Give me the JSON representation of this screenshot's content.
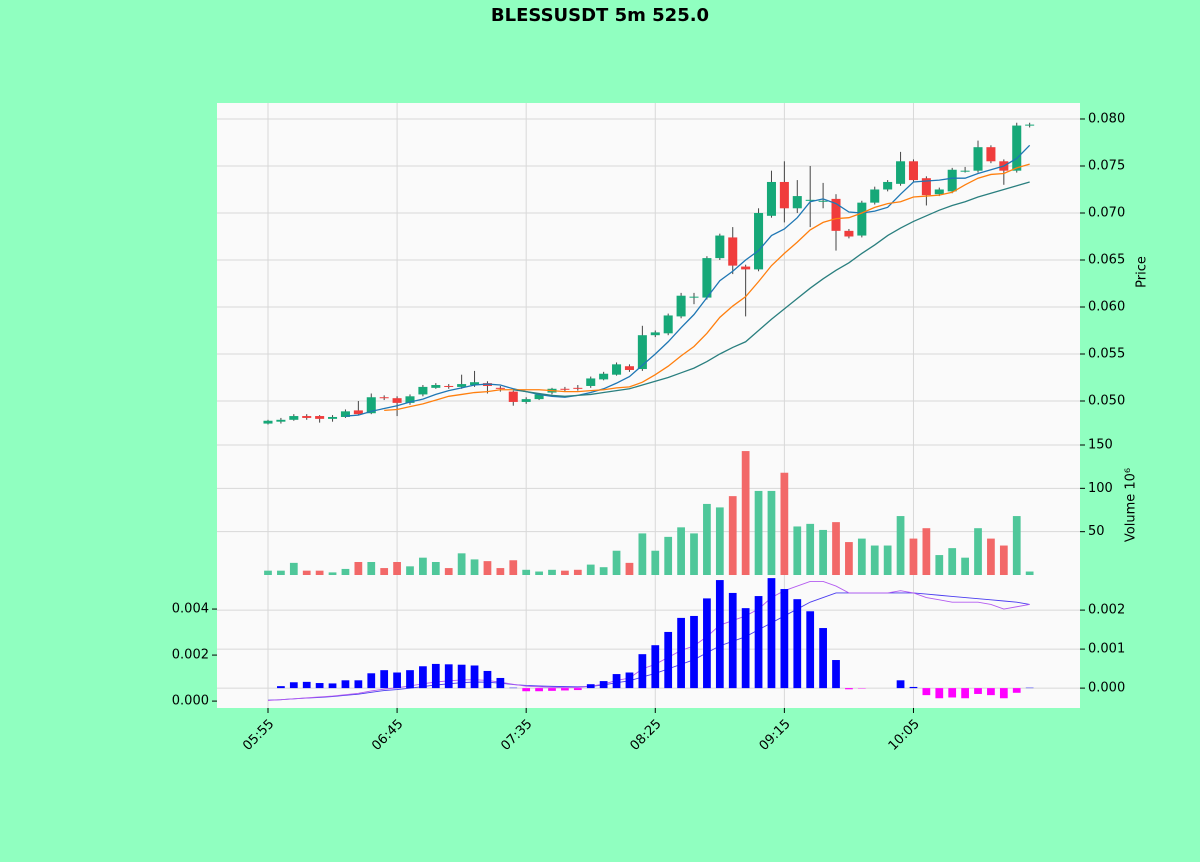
{
  "chart_data": [
    {
      "type": "candlestick",
      "title": "BLESSUSDT 5m 525.0",
      "ylabel": "Price",
      "xlim": [
        -3.95,
        62.9
      ],
      "ylim": [
        0.04532,
        0.0817
      ],
      "yticks": [
        {
          "value": 0.05,
          "label": "0.050"
        },
        {
          "value": 0.055,
          "label": "0.055"
        },
        {
          "value": 0.06,
          "label": "0.060"
        },
        {
          "value": 0.065,
          "label": "0.065"
        },
        {
          "value": 0.07,
          "label": "0.070"
        },
        {
          "value": 0.075,
          "label": "0.075"
        },
        {
          "value": 0.08,
          "label": "0.080"
        }
      ],
      "grid": true,
      "up_color": "#16a878",
      "down_color": "#f03c3c",
      "open": [
        0.0476,
        0.0478,
        0.048,
        0.0484,
        0.0484,
        0.0481,
        0.0483,
        0.049,
        0.0487,
        0.0504,
        0.0503,
        0.0498,
        0.0507,
        0.0514,
        0.0516,
        0.0515,
        0.0517,
        0.0519,
        0.0514,
        0.051,
        0.0499,
        0.0502,
        0.0509,
        0.0513,
        0.0514,
        0.0516,
        0.0523,
        0.0528,
        0.0537,
        0.0534,
        0.057,
        0.0572,
        0.059,
        0.061,
        0.061,
        0.0652,
        0.0674,
        0.0643,
        0.064,
        0.0697,
        0.0733,
        0.0705,
        0.0713,
        0.0712,
        0.0715,
        0.0681,
        0.0676,
        0.0711,
        0.0725,
        0.0731,
        0.0755,
        0.0737,
        0.072,
        0.0723,
        0.0745,
        0.0745,
        0.077,
        0.0755,
        0.0745,
        0.0793
      ],
      "high": [
        0.048,
        0.0482,
        0.0486,
        0.0486,
        0.0485,
        0.0485,
        0.0491,
        0.05,
        0.0508,
        0.0506,
        0.0505,
        0.0507,
        0.0517,
        0.0519,
        0.0518,
        0.0528,
        0.0532,
        0.0521,
        0.0516,
        0.0511,
        0.0504,
        0.0508,
        0.0514,
        0.0515,
        0.0517,
        0.0526,
        0.0531,
        0.0541,
        0.0539,
        0.058,
        0.0575,
        0.0593,
        0.0615,
        0.0615,
        0.0654,
        0.0678,
        0.0685,
        0.0645,
        0.0705,
        0.0745,
        0.0755,
        0.0735,
        0.075,
        0.0732,
        0.072,
        0.0683,
        0.0713,
        0.0728,
        0.0735,
        0.0765,
        0.0757,
        0.0739,
        0.0727,
        0.0748,
        0.0749,
        0.0777,
        0.0772,
        0.0757,
        0.0796,
        0.0796
      ],
      "low": [
        0.0475,
        0.0476,
        0.0479,
        0.048,
        0.0477,
        0.0478,
        0.0482,
        0.0485,
        0.0486,
        0.0501,
        0.0484,
        0.0496,
        0.0505,
        0.0513,
        0.0513,
        0.0513,
        0.0515,
        0.0508,
        0.051,
        0.0495,
        0.0497,
        0.0501,
        0.0507,
        0.051,
        0.0511,
        0.0514,
        0.0522,
        0.0527,
        0.0531,
        0.0532,
        0.0568,
        0.057,
        0.0588,
        0.0603,
        0.0608,
        0.065,
        0.0635,
        0.059,
        0.0638,
        0.0695,
        0.069,
        0.07,
        0.0685,
        0.0705,
        0.066,
        0.0673,
        0.0674,
        0.0709,
        0.0723,
        0.0729,
        0.0733,
        0.0708,
        0.0718,
        0.0721,
        0.0743,
        0.0743,
        0.0753,
        0.073,
        0.0743,
        0.0791
      ],
      "close": [
        0.0479,
        0.048,
        0.0484,
        0.0482,
        0.0481,
        0.0483,
        0.0489,
        0.0486,
        0.0504,
        0.0503,
        0.0498,
        0.0505,
        0.0515,
        0.0517,
        0.0515,
        0.0518,
        0.052,
        0.0516,
        0.0513,
        0.0499,
        0.0502,
        0.0507,
        0.0513,
        0.0512,
        0.0513,
        0.0524,
        0.0529,
        0.0539,
        0.0533,
        0.057,
        0.0573,
        0.0591,
        0.0612,
        0.0611,
        0.0652,
        0.0676,
        0.0644,
        0.064,
        0.07,
        0.0733,
        0.0705,
        0.0718,
        0.0714,
        0.0713,
        0.0681,
        0.0675,
        0.0711,
        0.0725,
        0.0733,
        0.0755,
        0.0735,
        0.0719,
        0.0725,
        0.0746,
        0.0745,
        0.077,
        0.0755,
        0.0745,
        0.0793,
        0.0794
      ],
      "series": [
        {
          "color": "#1f77b4",
          "values": [
            null,
            null,
            null,
            null,
            null,
            null,
            0.0484,
            0.0485,
            0.0489,
            0.0492,
            0.0495,
            0.0499,
            0.0502,
            0.0507,
            0.0511,
            0.0514,
            0.0517,
            0.0518,
            0.0517,
            0.0513,
            0.051,
            0.0507,
            0.0505,
            0.0504,
            0.0506,
            0.0509,
            0.0513,
            0.0519,
            0.0526,
            0.0538,
            0.055,
            0.0563,
            0.0578,
            0.0592,
            0.061,
            0.0628,
            0.0638,
            0.065,
            0.066,
            0.0676,
            0.0683,
            0.0695,
            0.0712,
            0.0715,
            0.071,
            0.0701,
            0.07,
            0.0702,
            0.0706,
            0.072,
            0.0733,
            0.0734,
            0.0735,
            0.0737,
            0.0737,
            0.0742,
            0.0746,
            0.075,
            0.0758,
            0.0772
          ]
        },
        {
          "color": "#ff7f0e",
          "values": [
            null,
            null,
            null,
            null,
            null,
            null,
            null,
            null,
            null,
            0.049,
            0.0491,
            0.0494,
            0.0497,
            0.0501,
            0.0505,
            0.0507,
            0.0509,
            0.051,
            0.0512,
            0.0512,
            0.0512,
            0.0512,
            0.0511,
            0.051,
            0.051,
            0.0511,
            0.0512,
            0.0514,
            0.0515,
            0.052,
            0.0528,
            0.0537,
            0.0548,
            0.0558,
            0.0572,
            0.0589,
            0.0601,
            0.0611,
            0.0627,
            0.0644,
            0.0657,
            0.0669,
            0.0682,
            0.069,
            0.0694,
            0.0695,
            0.07,
            0.0706,
            0.071,
            0.0712,
            0.0717,
            0.0718,
            0.0719,
            0.0722,
            0.073,
            0.0737,
            0.0741,
            0.0742,
            0.0748,
            0.0752
          ]
        },
        {
          "color": "#2a7f7f",
          "values": [
            null,
            null,
            null,
            null,
            null,
            null,
            null,
            null,
            null,
            null,
            null,
            null,
            null,
            null,
            null,
            null,
            null,
            null,
            null,
            0.0512,
            0.051,
            0.0508,
            0.0506,
            0.0505,
            0.0506,
            0.0507,
            0.0509,
            0.0511,
            0.0513,
            0.0517,
            0.0521,
            0.0525,
            0.053,
            0.0535,
            0.0542,
            0.055,
            0.0557,
            0.0563,
            0.0575,
            0.0587,
            0.0598,
            0.0609,
            0.062,
            0.063,
            0.0639,
            0.0647,
            0.0657,
            0.0666,
            0.0676,
            0.0684,
            0.0691,
            0.0697,
            0.0703,
            0.0708,
            0.0712,
            0.0717,
            0.0721,
            0.0725,
            0.0729,
            0.0733
          ]
        }
      ]
    },
    {
      "type": "volume",
      "ylabel": "Volume 10⁶",
      "ylim": [
        0,
        150
      ],
      "yticks": [
        50,
        100,
        150
      ],
      "grid": true,
      "up_color": "#4fc79a",
      "down_color": "#f26868",
      "values": [
        5,
        5,
        14,
        5,
        5,
        3,
        7,
        15,
        15,
        8,
        15,
        10,
        20,
        15,
        8,
        25,
        18,
        16,
        8,
        17,
        6,
        4,
        6,
        5,
        6,
        12,
        9,
        28,
        14,
        48,
        28,
        44,
        55,
        48,
        82,
        78,
        91,
        143,
        97,
        97,
        118,
        56,
        59,
        52,
        61,
        38,
        42,
        34,
        34,
        68,
        42,
        54,
        23,
        31,
        20,
        54,
        42,
        34,
        68,
        4
      ]
    },
    {
      "type": "macd",
      "ylim": [
        -0.0003,
        0.00548
      ],
      "y2lim": [
        -0.00051,
        0.0029
      ],
      "grid": true,
      "yticks": [
        {
          "value": 0,
          "label": "0.000"
        },
        {
          "value": 0.002,
          "label": "0.002"
        },
        {
          "value": 0.004,
          "label": "0.004"
        }
      ],
      "y2ticks": [
        {
          "value": 0,
          "label": "0.000"
        },
        {
          "value": 0.001,
          "label": "0.001"
        },
        {
          "value": 0.002,
          "label": "0.002"
        }
      ],
      "xticks": [
        {
          "value": 0,
          "label": "05:55"
        },
        {
          "value": 10,
          "label": "06:45"
        },
        {
          "value": 20,
          "label": "07:35"
        },
        {
          "value": 30,
          "label": "08:25"
        },
        {
          "value": 40,
          "label": "09:15"
        },
        {
          "value": 50,
          "label": "10:05"
        }
      ],
      "series": [
        {
          "color": "#4b3cf0",
          "values": [
            4e-05,
            6e-05,
            0.0001,
            0.00013,
            0.00016,
            0.0002,
            0.00025,
            0.0003,
            0.00038,
            0.00046,
            0.0005,
            0.00056,
            0.00063,
            0.0007,
            0.00075,
            0.0008,
            0.00083,
            0.00082,
            0.00078,
            0.00072,
            0.00068,
            0.00066,
            0.00064,
            0.00063,
            0.00062,
            0.00064,
            0.0007,
            0.0008,
            0.00088,
            0.00105,
            0.0012,
            0.0014,
            0.0016,
            0.0018,
            0.0021,
            0.0024,
            0.0026,
            0.0028,
            0.0031,
            0.0034,
            0.0037,
            0.004,
            0.0043,
            0.0045,
            0.0047,
            0.0047,
            0.0047,
            0.0047,
            0.0047,
            0.0047,
            0.0047,
            0.00465,
            0.0046,
            0.00455,
            0.0045,
            0.00445,
            0.0044,
            0.00435,
            0.0043,
            0.0042
          ]
        },
        {
          "color": "#b45cf0",
          "values": [
            3e-05,
            6e-05,
            0.0001,
            0.00014,
            0.00018,
            0.00022,
            0.00028,
            0.00034,
            0.00044,
            0.00052,
            0.00058,
            0.00066,
            0.00075,
            0.00083,
            0.00088,
            0.00092,
            0.00093,
            0.0009,
            0.00082,
            0.00073,
            0.00065,
            0.00062,
            0.0006,
            0.00059,
            0.00059,
            0.00065,
            0.00074,
            0.0009,
            0.001,
            0.0014,
            0.0016,
            0.0019,
            0.0022,
            0.0024,
            0.0028,
            0.0033,
            0.0035,
            0.0037,
            0.004,
            0.0045,
            0.0048,
            0.005,
            0.0052,
            0.0052,
            0.005,
            0.0047,
            0.0047,
            0.0047,
            0.0047,
            0.0048,
            0.0047,
            0.0045,
            0.0044,
            0.0043,
            0.0043,
            0.0043,
            0.0042,
            0.004,
            0.0041,
            0.0042
          ]
        },
        {
          "axis": "y2",
          "style": "bar",
          "positive_color": "#0000ff",
          "negative_color": "#ff00ff",
          "values": [
            0,
            5e-05,
            0.00015,
            0.00016,
            0.00013,
            0.00012,
            0.0002,
            0.0002,
            0.00038,
            0.00046,
            0.0004,
            0.00046,
            0.00056,
            0.00062,
            0.00061,
            0.0006,
            0.00058,
            0.00044,
            0.00026,
            1e-05,
            -8e-05,
            -8e-05,
            -7e-05,
            -6e-05,
            -5e-05,
            0.0001,
            0.00018,
            0.00036,
            0.0004,
            0.00087,
            0.0011,
            0.00144,
            0.0018,
            0.00185,
            0.0023,
            0.00277,
            0.00244,
            0.00205,
            0.00236,
            0.00282,
            0.00254,
            0.00228,
            0.00197,
            0.00154,
            0.00072,
            -3e-05,
            -1e-05,
            0,
            0,
            0.0002,
            3e-05,
            -0.00018,
            -0.00026,
            -0.00024,
            -0.00026,
            -0.00015,
            -0.00018,
            -0.00026,
            -0.00012,
            1e-05
          ]
        }
      ]
    }
  ]
}
